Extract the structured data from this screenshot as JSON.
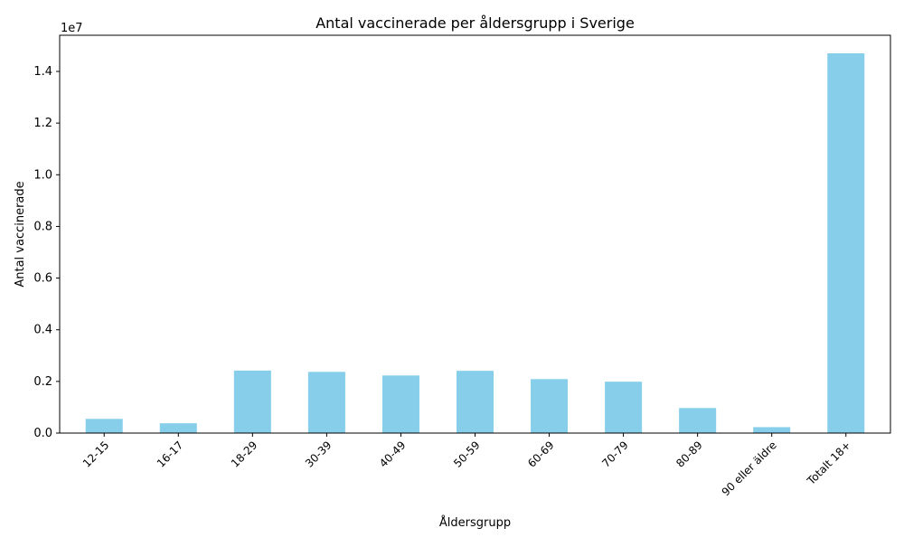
{
  "chart_data": {
    "type": "bar",
    "title": "Antal vaccinerade per åldersgrupp i Sverige",
    "xlabel": "Åldersgrupp",
    "ylabel": "Antal vaccinerade",
    "offset_text": "1e7",
    "categories": [
      "12-15",
      "16-17",
      "18-29",
      "30-39",
      "40-49",
      "50-59",
      "60-69",
      "70-79",
      "80-89",
      "90 eller äldre",
      "Totalt 18+"
    ],
    "values": [
      550000,
      380000,
      2420000,
      2370000,
      2230000,
      2410000,
      2090000,
      1990000,
      970000,
      230000,
      14700000
    ],
    "ylim": [
      0,
      15400000
    ],
    "yticks": [
      0,
      2000000,
      4000000,
      6000000,
      8000000,
      10000000,
      12000000,
      14000000
    ],
    "ytick_labels": [
      "0.0",
      "0.2",
      "0.4",
      "0.6",
      "0.8",
      "1.0",
      "1.2",
      "1.4"
    ],
    "bar_color": "#87ceeb",
    "grid": false,
    "legend": "none"
  }
}
